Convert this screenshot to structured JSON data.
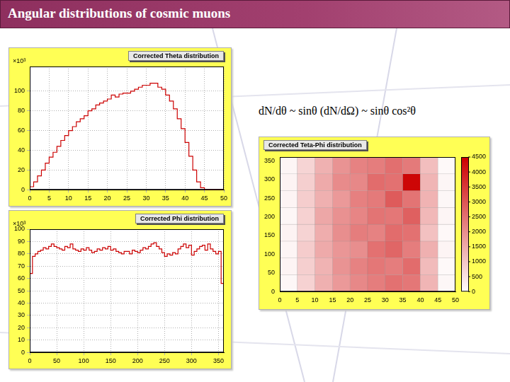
{
  "title": "Angular distributions of cosmic muons",
  "caption": "dN/dθ ~ sinθ (dN/dΩ) ~ sinθ cos²θ",
  "chart_data": [
    {
      "type": "histogram",
      "title": "Corrected Theta distribution",
      "ylabel": "×10³",
      "bins": [
        0,
        1,
        2,
        3,
        4,
        5,
        6,
        7,
        8,
        9,
        10,
        11,
        12,
        13,
        14,
        15,
        16,
        17,
        18,
        19,
        20,
        21,
        22,
        23,
        24,
        25,
        26,
        27,
        28,
        29,
        30,
        31,
        32,
        33,
        34,
        35,
        36,
        37,
        38,
        39,
        40,
        41,
        42,
        43,
        44,
        45,
        46,
        47,
        48,
        49,
        50
      ],
      "values": [
        3,
        8,
        14,
        20,
        27,
        33,
        38,
        44,
        50,
        55,
        60,
        64,
        69,
        72,
        75,
        80,
        82,
        86,
        88,
        90,
        92,
        96,
        94,
        97,
        98,
        98,
        100,
        102,
        104,
        106,
        106,
        108,
        108,
        104,
        102,
        96,
        90,
        82,
        72,
        62,
        48,
        34,
        20,
        8,
        2,
        0,
        0,
        0,
        0,
        0
      ],
      "color": "#cc0000",
      "xlim": [
        0,
        50
      ],
      "xticks": [
        0,
        5,
        10,
        15,
        20,
        25,
        30,
        35,
        40,
        45,
        50
      ],
      "ylim": [
        0,
        125
      ],
      "yticks": [
        0,
        20,
        40,
        60,
        80,
        100
      ],
      "grid": true
    },
    {
      "type": "histogram",
      "title": "Corrected Phi distribution",
      "ylabel": "×10³",
      "bins": [
        0,
        5,
        10,
        15,
        20,
        25,
        30,
        35,
        40,
        45,
        50,
        55,
        60,
        65,
        70,
        75,
        80,
        85,
        90,
        95,
        100,
        105,
        110,
        115,
        120,
        125,
        130,
        135,
        140,
        145,
        150,
        155,
        160,
        165,
        170,
        175,
        180,
        185,
        190,
        195,
        200,
        205,
        210,
        215,
        220,
        225,
        230,
        235,
        240,
        245,
        250,
        255,
        260,
        265,
        270,
        275,
        280,
        285,
        290,
        295,
        300,
        305,
        310,
        315,
        320,
        325,
        330,
        335,
        340,
        345,
        350,
        355,
        360
      ],
      "values": [
        64,
        78,
        80,
        82,
        83,
        85,
        84,
        86,
        88,
        86,
        85,
        84,
        83,
        86,
        85,
        88,
        84,
        83,
        82,
        84,
        83,
        85,
        83,
        81,
        82,
        84,
        83,
        85,
        84,
        86,
        83,
        84,
        82,
        81,
        80,
        82,
        82,
        80,
        83,
        82,
        81,
        83,
        85,
        84,
        86,
        88,
        89,
        86,
        84,
        81,
        78,
        80,
        79,
        81,
        80,
        84,
        86,
        88,
        85,
        87,
        79,
        82,
        84,
        86,
        87,
        83,
        88,
        84,
        82,
        80,
        82,
        56
      ],
      "color": "#cc0000",
      "xlim": [
        0,
        360
      ],
      "xticks": [
        0,
        50,
        100,
        150,
        200,
        250,
        300,
        350
      ],
      "ylim": [
        0,
        100
      ],
      "yticks": [
        0,
        10,
        20,
        30,
        40,
        50,
        60,
        70,
        80,
        90,
        100
      ],
      "grid": true
    },
    {
      "type": "heatmap",
      "title": "Corrected Teta-Phi distribution",
      "xbins": [
        0,
        5,
        10,
        15,
        20,
        25,
        30,
        35,
        40,
        45,
        50
      ],
      "ybins": [
        0,
        45,
        90,
        135,
        180,
        225,
        270,
        315,
        360
      ],
      "cells": [
        [
          150,
          800,
          1400,
          1800,
          2100,
          2300,
          2500,
          2400,
          1300,
          150
        ],
        [
          200,
          850,
          1350,
          1900,
          2200,
          2400,
          2300,
          2600,
          1200,
          100
        ],
        [
          180,
          900,
          1500,
          1850,
          2000,
          2500,
          2700,
          2300,
          1400,
          200
        ],
        [
          220,
          780,
          1450,
          2000,
          2300,
          2200,
          2600,
          2500,
          1100,
          120
        ],
        [
          160,
          820,
          1550,
          1950,
          2150,
          2450,
          2400,
          2800,
          1250,
          180
        ],
        [
          190,
          880,
          1400,
          1800,
          2250,
          2350,
          2900,
          2450,
          1350,
          140
        ],
        [
          210,
          840,
          1500,
          2050,
          2100,
          2600,
          2500,
          4400,
          1300,
          160
        ],
        [
          170,
          760,
          1380,
          1900,
          2200,
          2300,
          2550,
          2350,
          1150,
          110
        ]
      ],
      "color": "#cc0000",
      "xlim": [
        0,
        50
      ],
      "xticks": [
        0,
        5,
        10,
        15,
        20,
        25,
        30,
        35,
        40,
        45,
        50
      ],
      "ylim": [
        0,
        360
      ],
      "yticks": [
        0,
        50,
        100,
        150,
        200,
        250,
        300,
        350
      ],
      "zlim": [
        0,
        4500
      ],
      "zticks": [
        0,
        500,
        1000,
        1500,
        2000,
        2500,
        3000,
        3500,
        4000,
        4500
      ],
      "grid": false
    }
  ]
}
